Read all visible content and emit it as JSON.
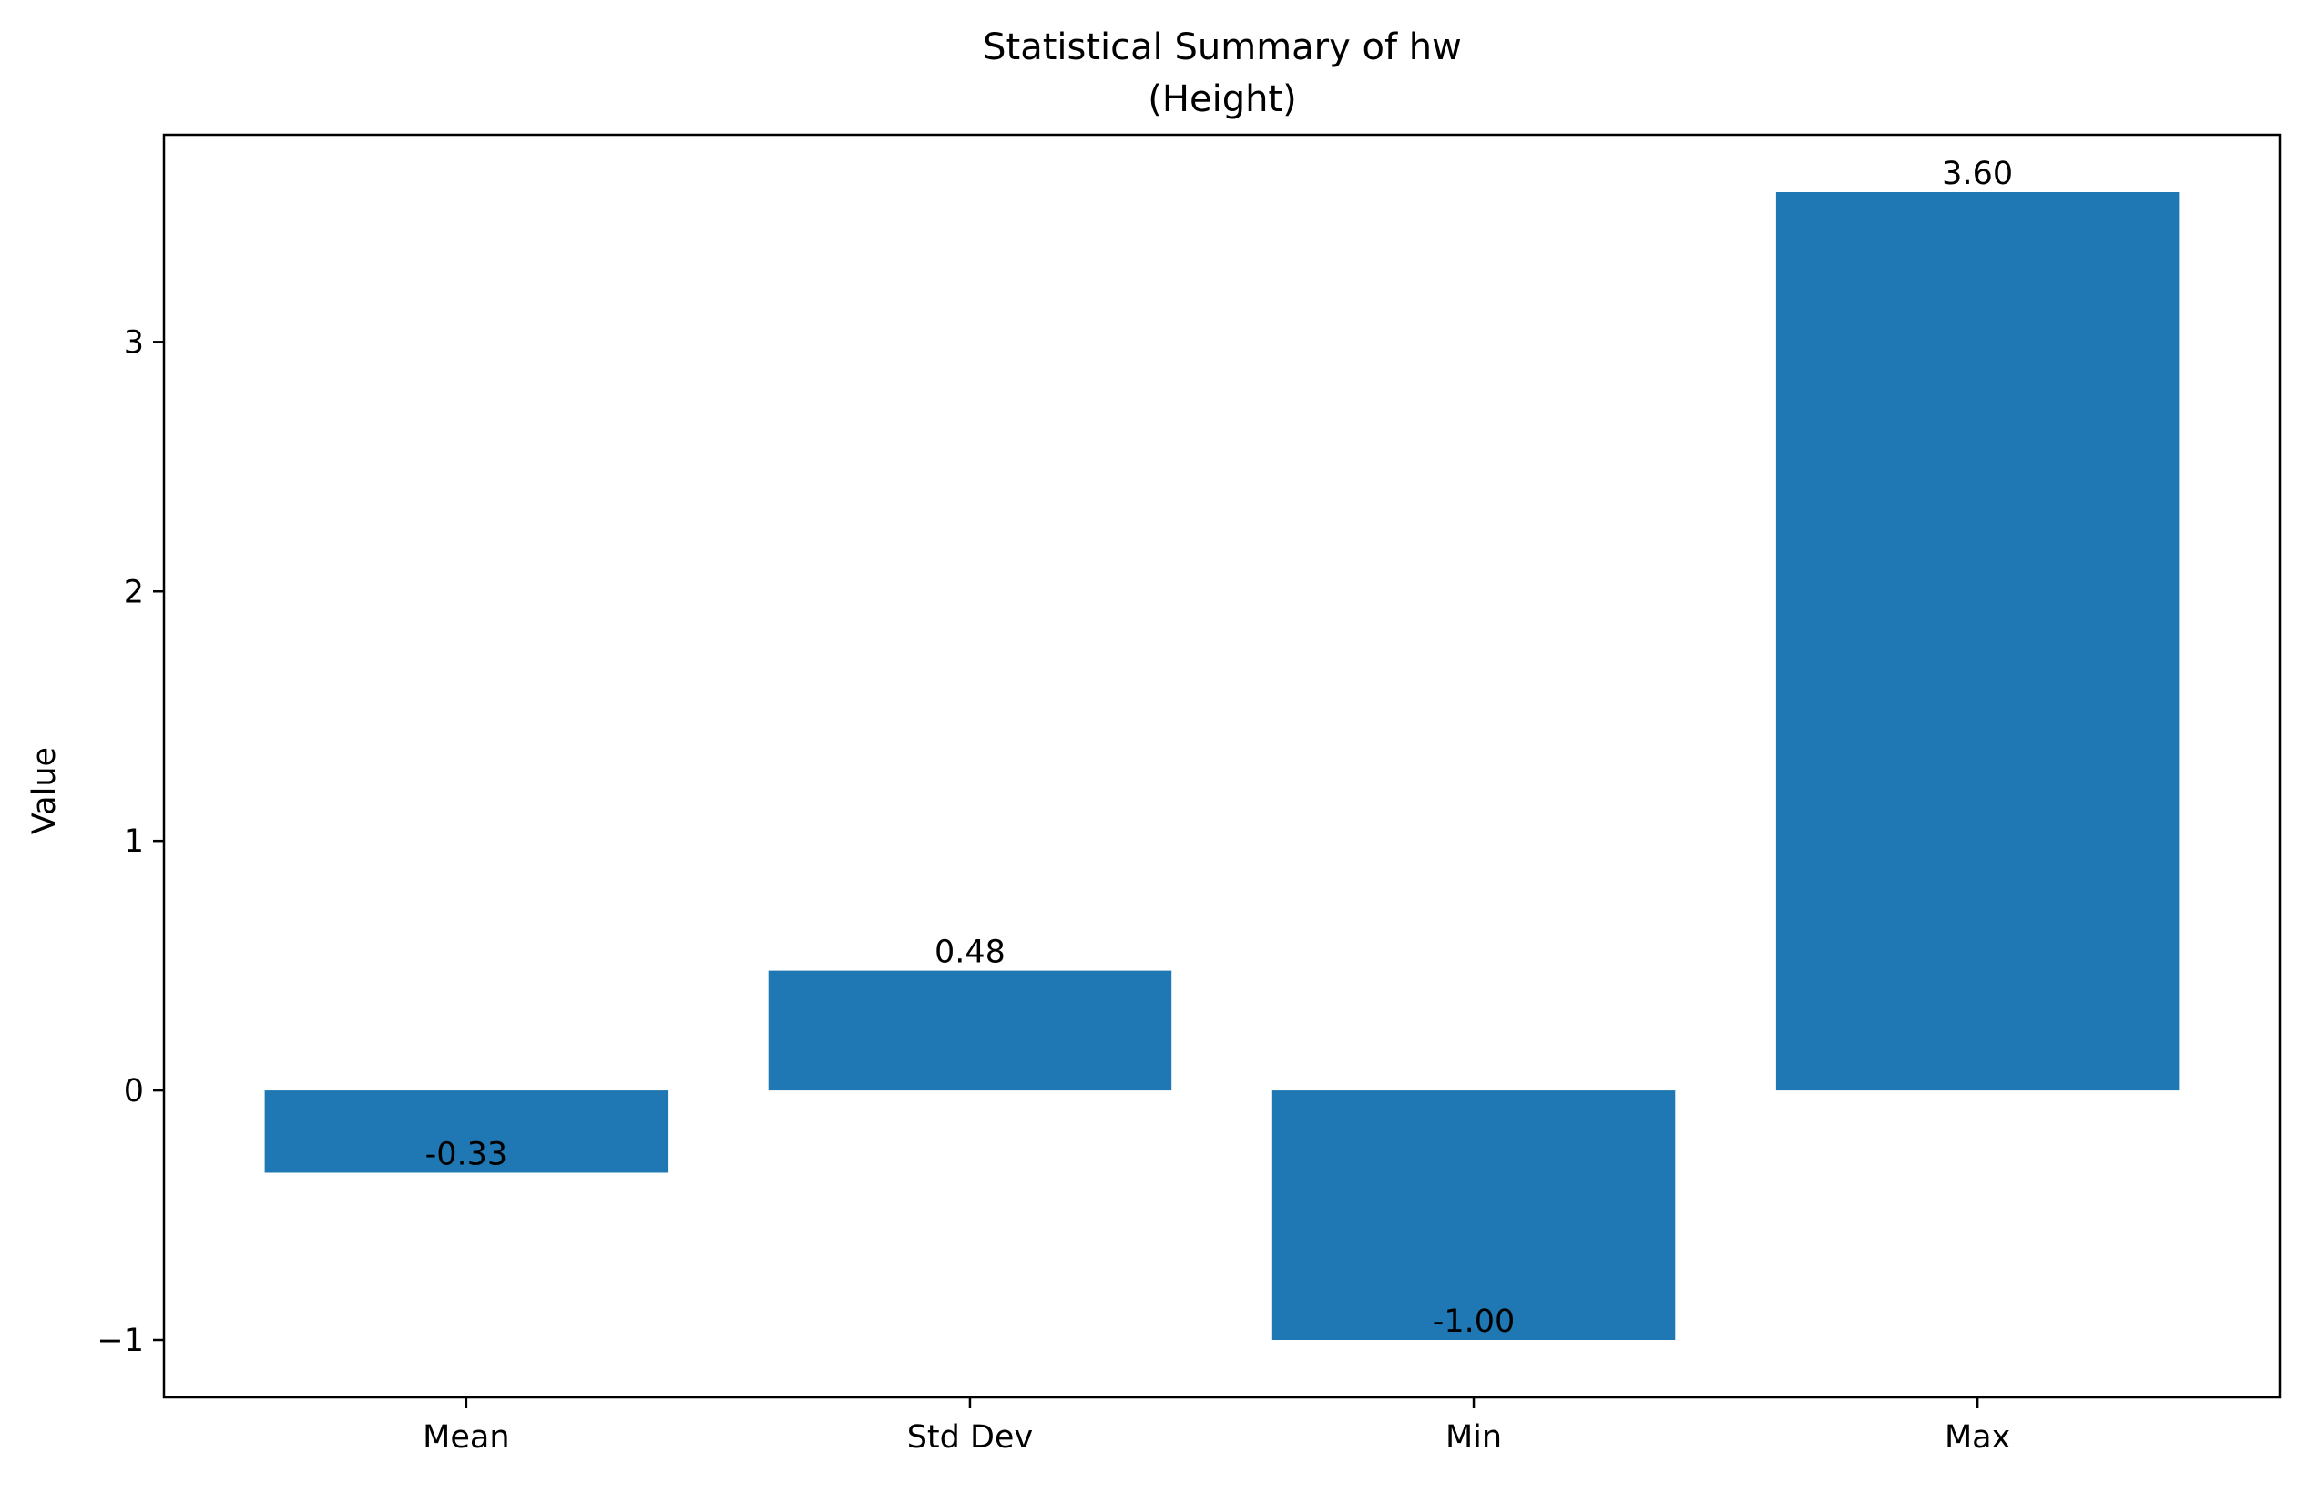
{
  "chart_data": {
    "type": "bar",
    "title": "Statistical Summary of hw",
    "subtitle": "(Height)",
    "xlabel": "",
    "ylabel": "Value",
    "categories": [
      "Mean",
      "Std Dev",
      "Min",
      "Max"
    ],
    "values": [
      -0.33,
      0.48,
      -1.0,
      3.6
    ],
    "value_labels": [
      "-0.33",
      "0.48",
      "-1.00",
      "3.60"
    ],
    "ylim": [
      -1.23,
      3.83
    ],
    "yticks": [
      -1,
      0,
      1,
      2,
      3
    ],
    "ytick_labels": [
      "−1",
      "0",
      "1",
      "2",
      "3"
    ],
    "grid": false,
    "bar_color": "#1f77b4"
  }
}
